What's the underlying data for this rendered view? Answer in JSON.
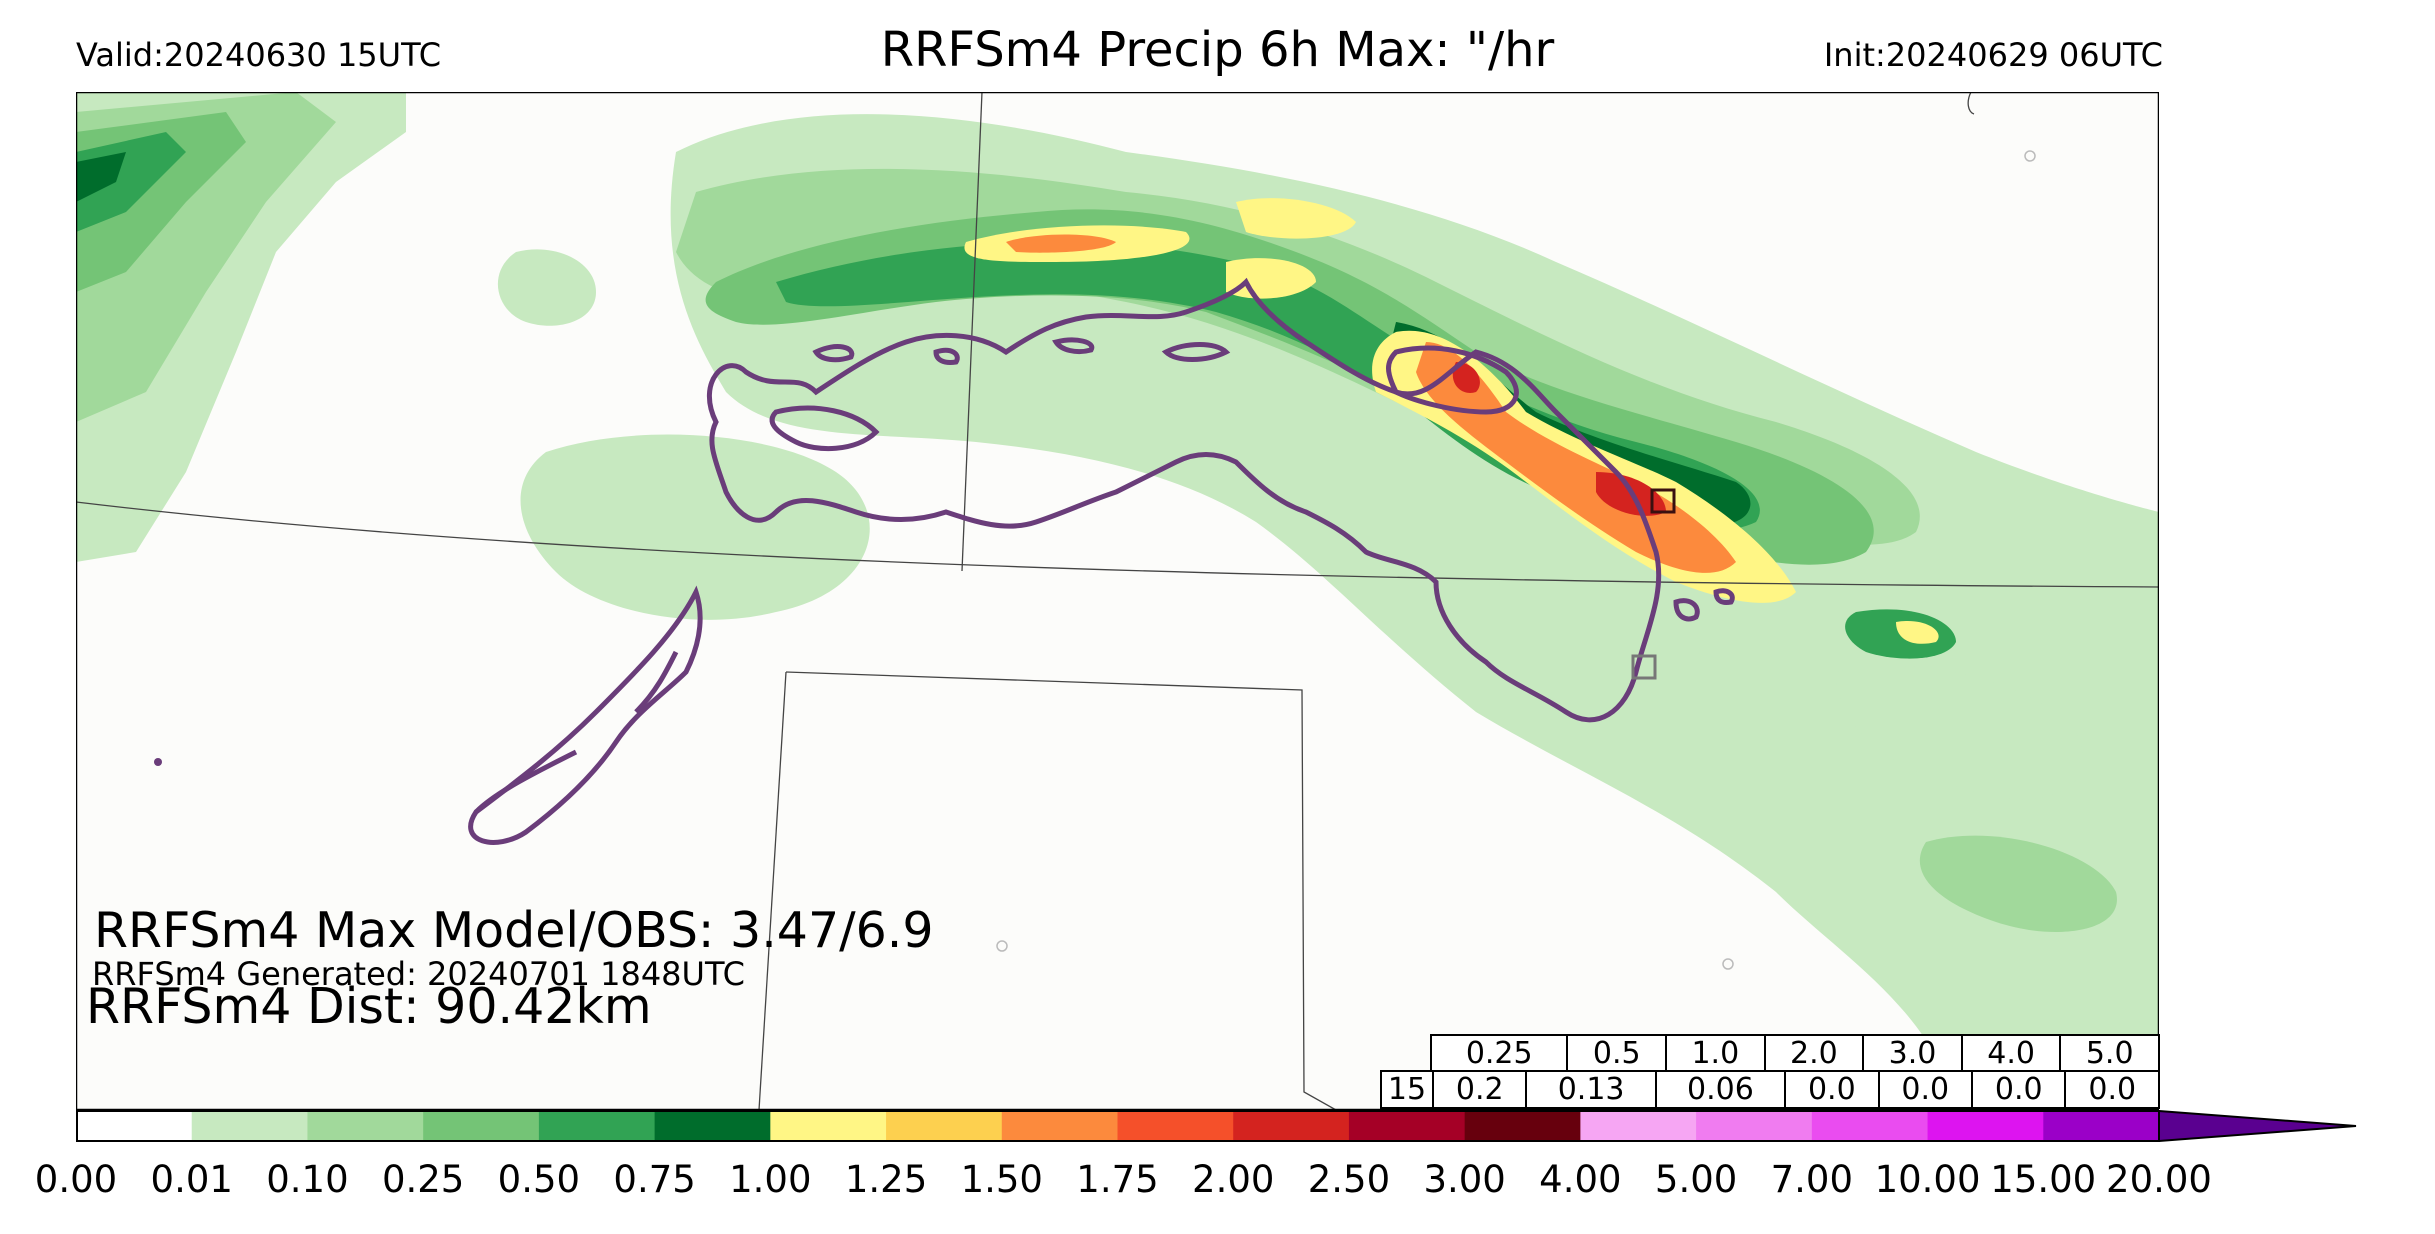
{
  "header": {
    "valid": "Valid:20240630 15UTC",
    "title": "RRFSm4 Precip 6h Max: \"/hr",
    "init": "Init:20240629 06UTC"
  },
  "annotations": {
    "max_model_obs": "RRFSm4 Max Model/OBS: 3.47/6.9",
    "generated": "RRFSm4 Generated: 20240701 1848UTC",
    "distance": "RRFSm4 Dist: 90.42km"
  },
  "stats_table": {
    "thresholds": [
      "0.25",
      "0.5",
      "1.0",
      "2.0",
      "3.0",
      "4.0",
      "5.0"
    ],
    "row_label": "15",
    "values": [
      "0.2",
      "0.13",
      "0.06",
      "0.0",
      "0.0",
      "0.0",
      "0.0"
    ]
  },
  "colorbar": {
    "ticks": [
      "0.00",
      "0.01",
      "0.10",
      "0.25",
      "0.50",
      "0.75",
      "1.00",
      "1.25",
      "1.50",
      "1.75",
      "2.00",
      "2.50",
      "3.00",
      "4.00",
      "5.00",
      "7.00",
      "10.00",
      "15.00",
      "20.00"
    ],
    "colors": [
      "#ffffff",
      "#c7e9c0",
      "#a1d99b",
      "#74c476",
      "#31a354",
      "#006d2c",
      "#fff685",
      "#fdd04f",
      "#fc8a3d",
      "#f5502a",
      "#d4231f",
      "#a50026",
      "#67000d",
      "#f6a6f3",
      "#f07cf0",
      "#ea4cf0",
      "#dd14f0",
      "#9b00c8"
    ],
    "extend_color": "#5a0090"
  }
}
